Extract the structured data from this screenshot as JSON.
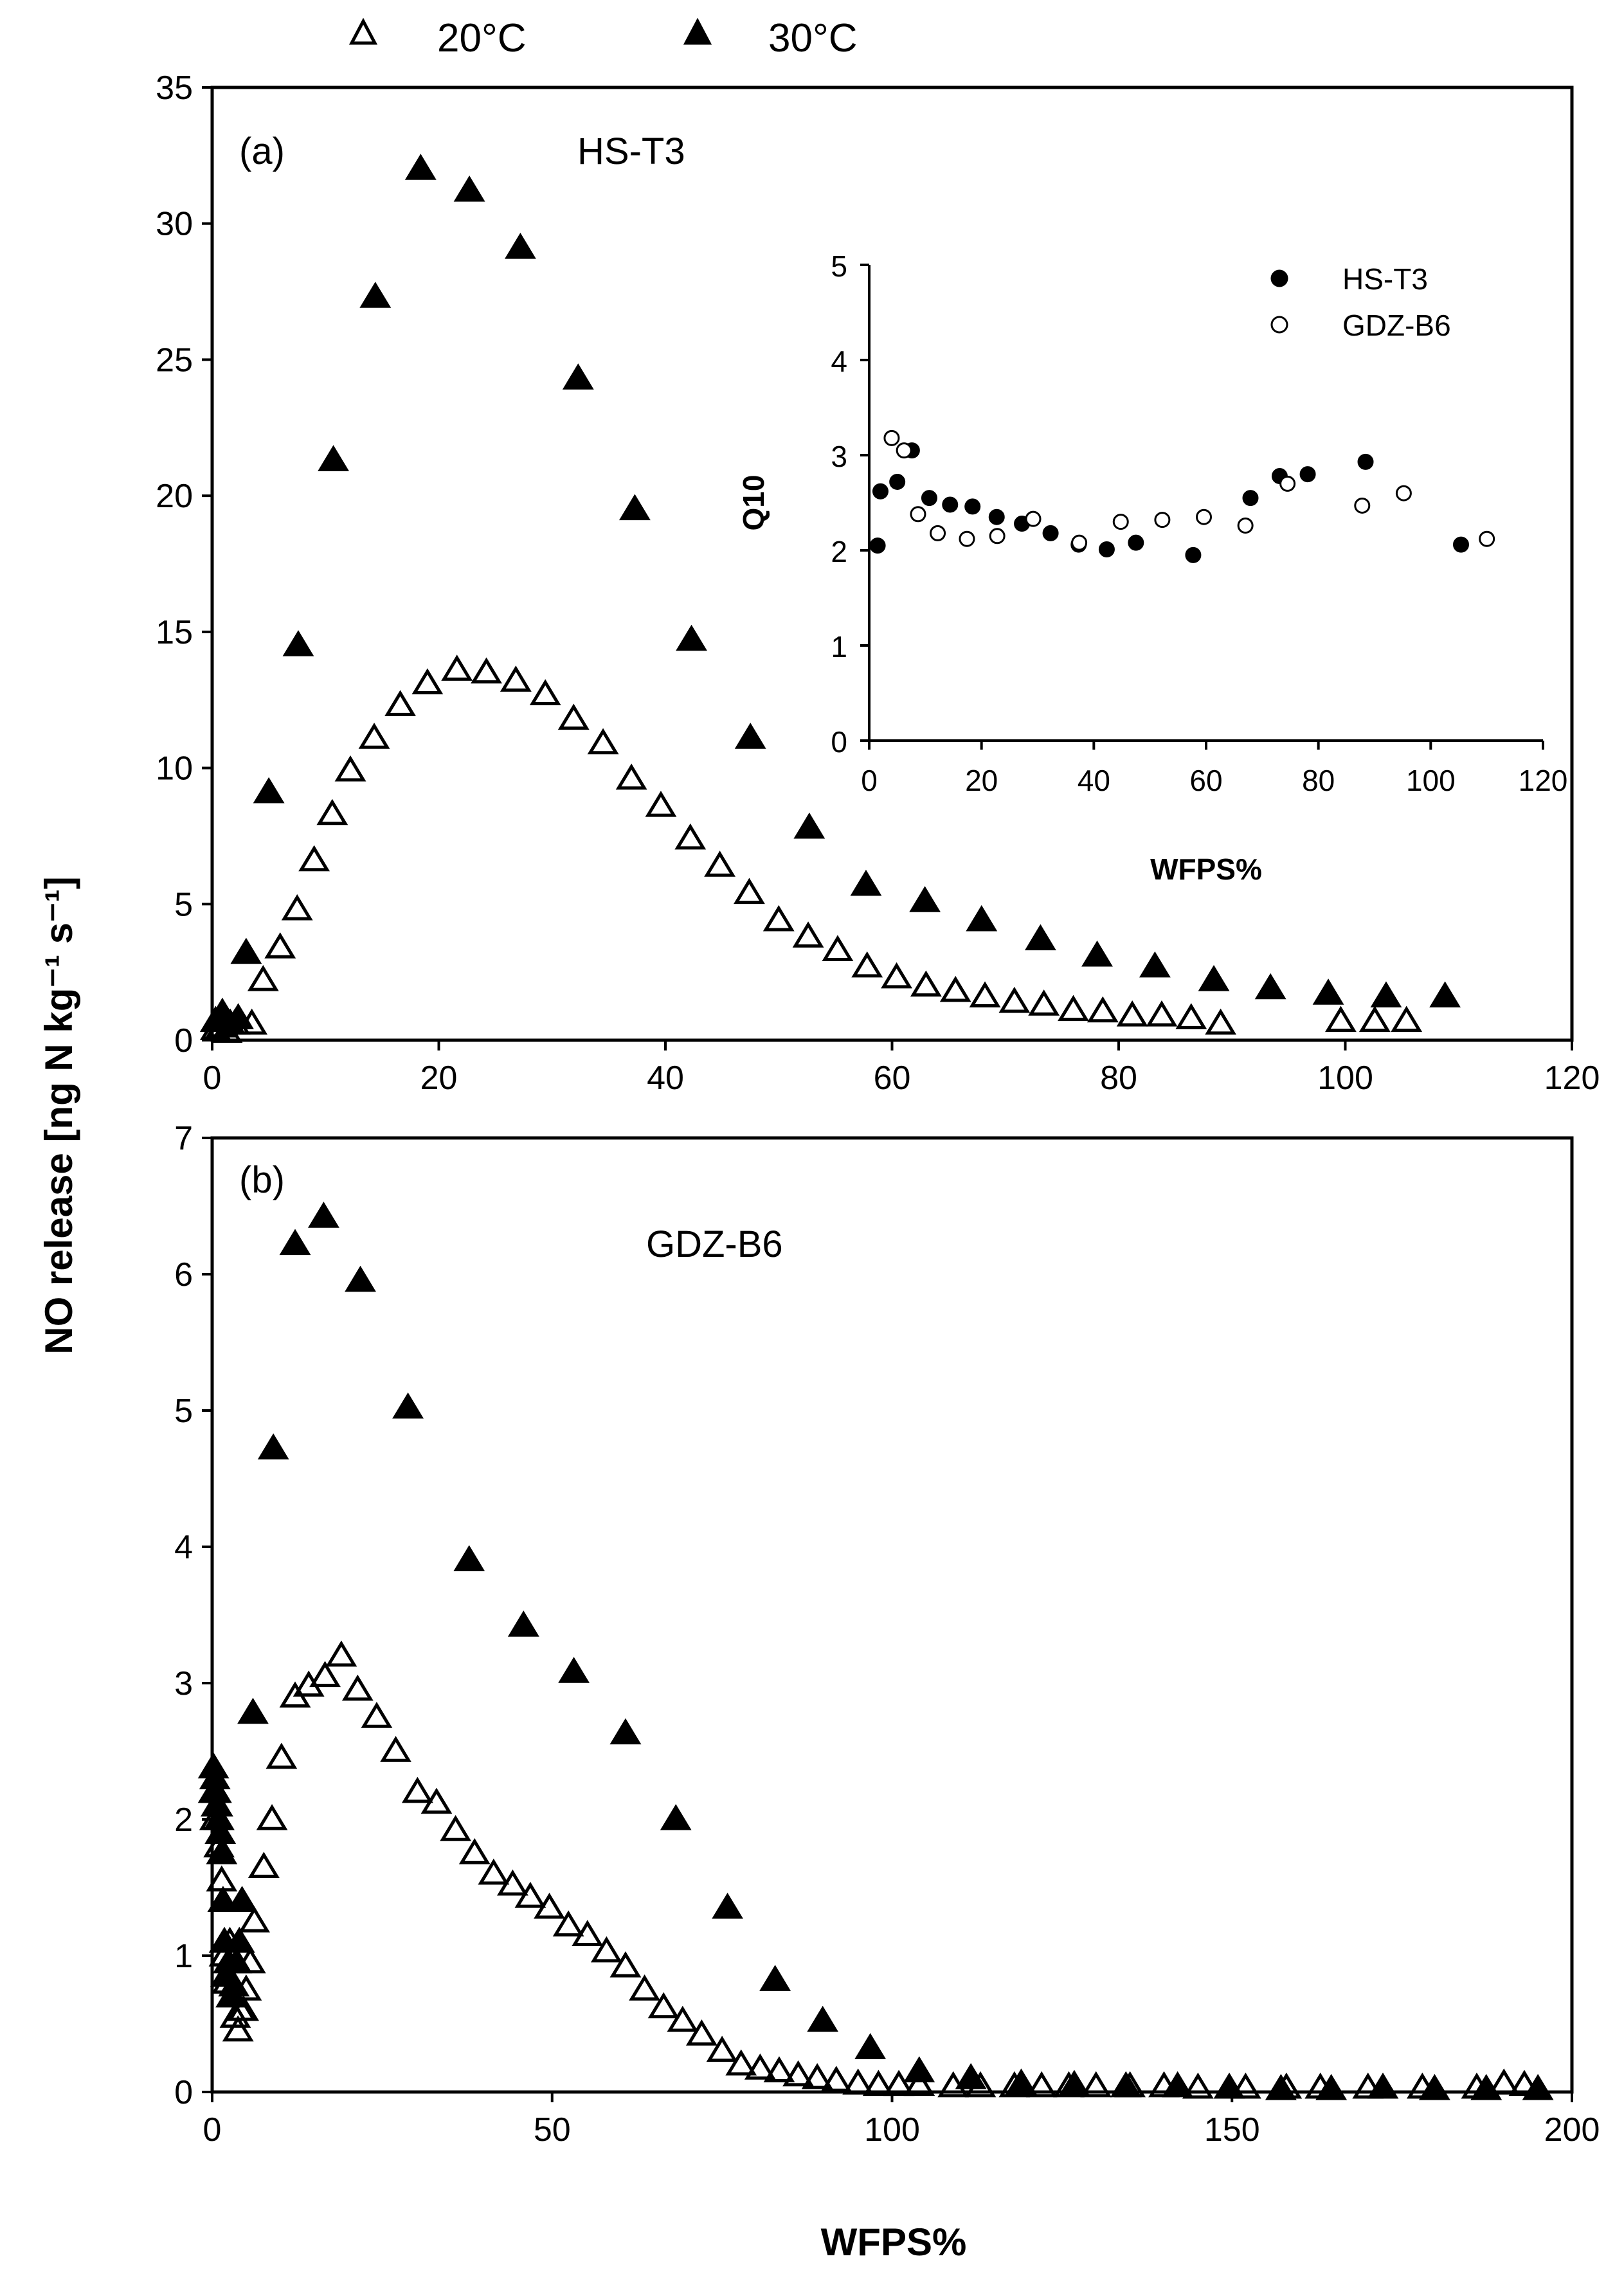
{
  "figure": {
    "ylabel": "NO release [ng N kg⁻¹ s⁻¹]",
    "xlabel": "WFPS%",
    "legend": [
      {
        "label": "20°C",
        "marker": "open-triangle"
      },
      {
        "label": "30°C",
        "marker": "filled-triangle"
      }
    ]
  },
  "chart_data": [
    {
      "type": "scatter",
      "panel": "(a)",
      "title": "HS-T3",
      "xlabel": "",
      "ylabel": "NO release [ng N kg⁻¹ s⁻¹]",
      "xlim": [
        0,
        120
      ],
      "ylim": [
        0,
        35
      ],
      "xticks": [
        "0",
        "20",
        "40",
        "60",
        "80",
        "100",
        "120"
      ],
      "yticks": [
        "0",
        "5",
        "10",
        "15",
        "20",
        "25",
        "30",
        "35"
      ],
      "series": [
        {
          "name": "20°C",
          "marker": "open-triangle",
          "points": [
            [
              0.3,
              0.4
            ],
            [
              0.8,
              0.5
            ],
            [
              1.3,
              0.3
            ],
            [
              2.0,
              0.6
            ],
            [
              3.5,
              0.6
            ],
            [
              4.5,
              2.2
            ],
            [
              6.0,
              3.4
            ],
            [
              7.5,
              4.8
            ],
            [
              9.0,
              6.6
            ],
            [
              10.6,
              8.3
            ],
            [
              12.2,
              9.9
            ],
            [
              14.3,
              11.1
            ],
            [
              16.6,
              12.3
            ],
            [
              19.0,
              13.1
            ],
            [
              21.6,
              13.6
            ],
            [
              24.2,
              13.5
            ],
            [
              26.8,
              13.2
            ],
            [
              29.4,
              12.7
            ],
            [
              31.9,
              11.8
            ],
            [
              34.5,
              10.9
            ],
            [
              37.0,
              9.6
            ],
            [
              39.6,
              8.6
            ],
            [
              42.2,
              7.4
            ],
            [
              44.8,
              6.4
            ],
            [
              47.4,
              5.4
            ],
            [
              50.0,
              4.4
            ],
            [
              52.6,
              3.8
            ],
            [
              55.2,
              3.3
            ],
            [
              57.8,
              2.7
            ],
            [
              60.4,
              2.3
            ],
            [
              63.0,
              2.0
            ],
            [
              65.6,
              1.8
            ],
            [
              68.2,
              1.6
            ],
            [
              70.8,
              1.4
            ],
            [
              73.4,
              1.3
            ],
            [
              76.0,
              1.1
            ],
            [
              78.6,
              1.05
            ],
            [
              81.2,
              0.9
            ],
            [
              83.8,
              0.9
            ],
            [
              86.4,
              0.8
            ],
            [
              89.0,
              0.6
            ],
            [
              99.6,
              0.7
            ],
            [
              102.6,
              0.7
            ],
            [
              105.4,
              0.7
            ]
          ]
        },
        {
          "name": "30°C",
          "marker": "filled-triangle",
          "points": [
            [
              0.3,
              0.7
            ],
            [
              0.9,
              1.0
            ],
            [
              1.6,
              0.6
            ],
            [
              2.3,
              0.8
            ],
            [
              3.0,
              3.2
            ],
            [
              5.0,
              9.1
            ],
            [
              7.6,
              14.5
            ],
            [
              10.7,
              21.3
            ],
            [
              14.4,
              27.3
            ],
            [
              18.4,
              32.0
            ],
            [
              22.7,
              31.2
            ],
            [
              27.2,
              29.1
            ],
            [
              32.3,
              24.3
            ],
            [
              37.3,
              19.5
            ],
            [
              42.3,
              14.7
            ],
            [
              47.5,
              11.1
            ],
            [
              52.7,
              7.8
            ],
            [
              57.7,
              5.7
            ],
            [
              62.9,
              5.1
            ],
            [
              67.9,
              4.4
            ],
            [
              73.1,
              3.7
            ],
            [
              78.1,
              3.1
            ],
            [
              83.2,
              2.7
            ],
            [
              88.4,
              2.2
            ],
            [
              93.4,
              1.9
            ],
            [
              98.5,
              1.7
            ],
            [
              103.6,
              1.6
            ],
            [
              108.8,
              1.6
            ]
          ]
        }
      ],
      "inset": {
        "type": "scatter",
        "xlabel": "WFPS%",
        "ylabel": "Q10",
        "xlim": [
          0,
          120
        ],
        "ylim": [
          0,
          5
        ],
        "xticks": [
          "0",
          "20",
          "40",
          "60",
          "80",
          "100",
          "120"
        ],
        "yticks": [
          "0",
          "1",
          "2",
          "3",
          "4",
          "5"
        ],
        "series": [
          {
            "name": "HS-T3",
            "marker": "filled-circle",
            "points": [
              [
                1.5,
                2.05
              ],
              [
                2.0,
                2.62
              ],
              [
                5.0,
                2.72
              ],
              [
                7.6,
                3.05
              ],
              [
                10.7,
                2.55
              ],
              [
                14.4,
                2.48
              ],
              [
                18.4,
                2.46
              ],
              [
                22.7,
                2.35
              ],
              [
                27.2,
                2.28
              ],
              [
                32.3,
                2.18
              ],
              [
                37.3,
                2.06
              ],
              [
                42.3,
                2.01
              ],
              [
                47.5,
                2.08
              ],
              [
                57.7,
                1.95
              ],
              [
                67.9,
                2.55
              ],
              [
                73.1,
                2.78
              ],
              [
                78.1,
                2.8
              ],
              [
                88.4,
                2.93
              ],
              [
                105.4,
                2.06
              ]
            ]
          },
          {
            "name": "GDZ-B6",
            "marker": "open-circle",
            "points": [
              [
                4.0,
                3.18
              ],
              [
                6.2,
                3.05
              ],
              [
                8.7,
                2.38
              ],
              [
                12.2,
                2.18
              ],
              [
                17.4,
                2.12
              ],
              [
                22.8,
                2.15
              ],
              [
                29.2,
                2.33
              ],
              [
                37.4,
                2.08
              ],
              [
                44.8,
                2.3
              ],
              [
                52.2,
                2.32
              ],
              [
                59.6,
                2.35
              ],
              [
                67.0,
                2.26
              ],
              [
                74.5,
                2.7
              ],
              [
                87.8,
                2.47
              ],
              [
                95.2,
                2.6
              ],
              [
                110.0,
                2.12
              ]
            ]
          }
        ]
      }
    },
    {
      "type": "scatter",
      "panel": "(b)",
      "title": "GDZ-B6",
      "xlabel": "WFPS%",
      "ylabel": "NO release [ng N kg⁻¹ s⁻¹]",
      "xlim": [
        0,
        200
      ],
      "ylim": [
        0,
        7
      ],
      "xticks": [
        "0",
        "50",
        "100",
        "150",
        "200"
      ],
      "yticks": [
        "0",
        "1",
        "2",
        "3",
        "4",
        "5",
        "6",
        "7"
      ],
      "series": [
        {
          "name": "20°C",
          "marker": "open-triangle",
          "points": [
            [
              0.2,
              2.2
            ],
            [
              0.4,
              2.0
            ],
            [
              0.6,
              2.1
            ],
            [
              1.0,
              1.8
            ],
            [
              1.4,
              1.55
            ],
            [
              1.8,
              1.0
            ],
            [
              2.2,
              0.8
            ],
            [
              2.6,
              1.1
            ],
            [
              3.0,
              0.7
            ],
            [
              3.4,
              0.55
            ],
            [
              3.8,
              0.45
            ],
            [
              4.2,
              0.6
            ],
            [
              4.6,
              0.6
            ],
            [
              5.0,
              0.75
            ],
            [
              5.6,
              0.95
            ],
            [
              6.2,
              1.25
            ],
            [
              7.6,
              1.65
            ],
            [
              8.8,
              2.0
            ],
            [
              10.2,
              2.45
            ],
            [
              12.2,
              2.9
            ],
            [
              14.2,
              2.98
            ],
            [
              16.6,
              3.05
            ],
            [
              19.0,
              3.2
            ],
            [
              21.4,
              2.95
            ],
            [
              24.2,
              2.75
            ],
            [
              27.0,
              2.5
            ],
            [
              30.2,
              2.2
            ],
            [
              33.0,
              2.12
            ],
            [
              35.8,
              1.92
            ],
            [
              38.6,
              1.75
            ],
            [
              41.4,
              1.6
            ],
            [
              44.2,
              1.52
            ],
            [
              46.8,
              1.43
            ],
            [
              49.6,
              1.35
            ],
            [
              52.4,
              1.22
            ],
            [
              55.2,
              1.15
            ],
            [
              58.0,
              1.03
            ],
            [
              60.8,
              0.92
            ],
            [
              63.6,
              0.75
            ],
            [
              66.4,
              0.62
            ],
            [
              69.2,
              0.52
            ],
            [
              72.0,
              0.42
            ],
            [
              75.0,
              0.3
            ],
            [
              77.8,
              0.2
            ],
            [
              80.6,
              0.17
            ],
            [
              83.4,
              0.15
            ],
            [
              86.2,
              0.12
            ],
            [
              89.0,
              0.1
            ],
            [
              91.8,
              0.08
            ],
            [
              95.0,
              0.06
            ],
            [
              98.0,
              0.05
            ],
            [
              101.0,
              0.05
            ],
            [
              104.0,
              0.05
            ],
            [
              109.0,
              0.04
            ],
            [
              113.0,
              0.04
            ],
            [
              118.0,
              0.04
            ],
            [
              122.0,
              0.04
            ],
            [
              126.0,
              0.04
            ],
            [
              130.0,
              0.04
            ],
            [
              135.0,
              0.04
            ],
            [
              140.0,
              0.04
            ],
            [
              145.0,
              0.03
            ],
            [
              152.0,
              0.03
            ],
            [
              158.0,
              0.03
            ],
            [
              163.0,
              0.03
            ],
            [
              170.0,
              0.03
            ],
            [
              178.0,
              0.03
            ],
            [
              186.0,
              0.03
            ],
            [
              190.0,
              0.06
            ],
            [
              193.0,
              0.05
            ]
          ]
        },
        {
          "name": "30°C",
          "marker": "filled-triangle",
          "points": [
            [
              0.2,
              2.38
            ],
            [
              0.4,
              2.3
            ],
            [
              0.6,
              2.2
            ],
            [
              0.8,
              2.1
            ],
            [
              1.0,
              2.0
            ],
            [
              1.2,
              1.9
            ],
            [
              1.4,
              1.75
            ],
            [
              1.6,
              1.4
            ],
            [
              1.8,
              1.1
            ],
            [
              2.0,
              0.85
            ],
            [
              2.4,
              0.95
            ],
            [
              2.8,
              0.7
            ],
            [
              3.2,
              0.78
            ],
            [
              3.6,
              0.95
            ],
            [
              4.0,
              1.1
            ],
            [
              4.4,
              1.4
            ],
            [
              6.0,
              2.78
            ],
            [
              9.0,
              4.72
            ],
            [
              12.2,
              6.22
            ],
            [
              16.4,
              6.42
            ],
            [
              21.8,
              5.95
            ],
            [
              28.8,
              5.02
            ],
            [
              37.8,
              3.9
            ],
            [
              45.8,
              3.42
            ],
            [
              53.2,
              3.08
            ],
            [
              60.8,
              2.63
            ],
            [
              68.2,
              2.0
            ],
            [
              75.8,
              1.35
            ],
            [
              82.8,
              0.82
            ],
            [
              89.8,
              0.52
            ],
            [
              96.8,
              0.32
            ],
            [
              104.0,
              0.15
            ],
            [
              111.6,
              0.1
            ],
            [
              119.0,
              0.06
            ],
            [
              126.8,
              0.05
            ],
            [
              134.4,
              0.04
            ],
            [
              142.0,
              0.04
            ],
            [
              149.6,
              0.03
            ],
            [
              157.2,
              0.02
            ],
            [
              164.6,
              0.02
            ],
            [
              172.2,
              0.03
            ],
            [
              179.8,
              0.02
            ],
            [
              187.4,
              0.02
            ],
            [
              195.0,
              0.02
            ]
          ]
        }
      ]
    }
  ]
}
